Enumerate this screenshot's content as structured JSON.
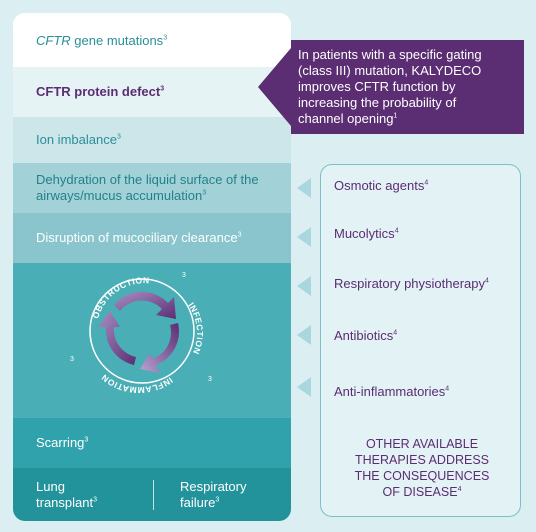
{
  "left_stack": {
    "gene_mutations": {
      "italic": "CFTR",
      "rest": " gene mutations",
      "ref": "3"
    },
    "protein_defect": {
      "text": "CFTR protein defect",
      "ref": "3"
    },
    "ion_imbalance": {
      "text": "Ion imbalance",
      "ref": "3"
    },
    "dehydration": {
      "line1": "Dehydration of the liquid surface of the",
      "line2": "airways/mucus accumulation",
      "ref": "3"
    },
    "disruption": {
      "text": "Disruption of mucociliary clearance",
      "ref": "3"
    },
    "scarring": {
      "text": "Scarring",
      "ref": "3"
    },
    "lung_transplant": {
      "line1": "Lung",
      "line2": "transplant",
      "ref": "3"
    },
    "respiratory_failure": {
      "line1": "Respiratory",
      "line2": "failure",
      "ref": "3"
    }
  },
  "cycle": {
    "obstruction": "OBSTRUCTION",
    "infection": "INFECTION",
    "inflammation": "INFLAMMATION",
    "ref": "3"
  },
  "callout": {
    "line1": "In patients with a specific gating",
    "line2": "(class III) mutation, KALYDECO",
    "line3": "improves CFTR function by",
    "line4": "increasing the probability of",
    "line5": "channel opening",
    "ref": "1"
  },
  "therapies": [
    {
      "text": "Osmotic agents",
      "ref": "4"
    },
    {
      "text": "Mucolytics",
      "ref": "4"
    },
    {
      "text": "Respiratory physiotherapy",
      "ref": "4"
    },
    {
      "text": "Antibiotics",
      "ref": "4"
    },
    {
      "text": "Anti-inflammatories",
      "ref": "4"
    }
  ],
  "other": {
    "line1": "OTHER AVAILABLE",
    "line2": "THERAPIES ADDRESS",
    "line3": "THE CONSEQUENCES",
    "line4": "OF DISEASE",
    "ref": "4"
  },
  "colors": {
    "purple": "#5b2d72",
    "teal_dark": "#22929b",
    "teal_text": "#2a8f99"
  }
}
